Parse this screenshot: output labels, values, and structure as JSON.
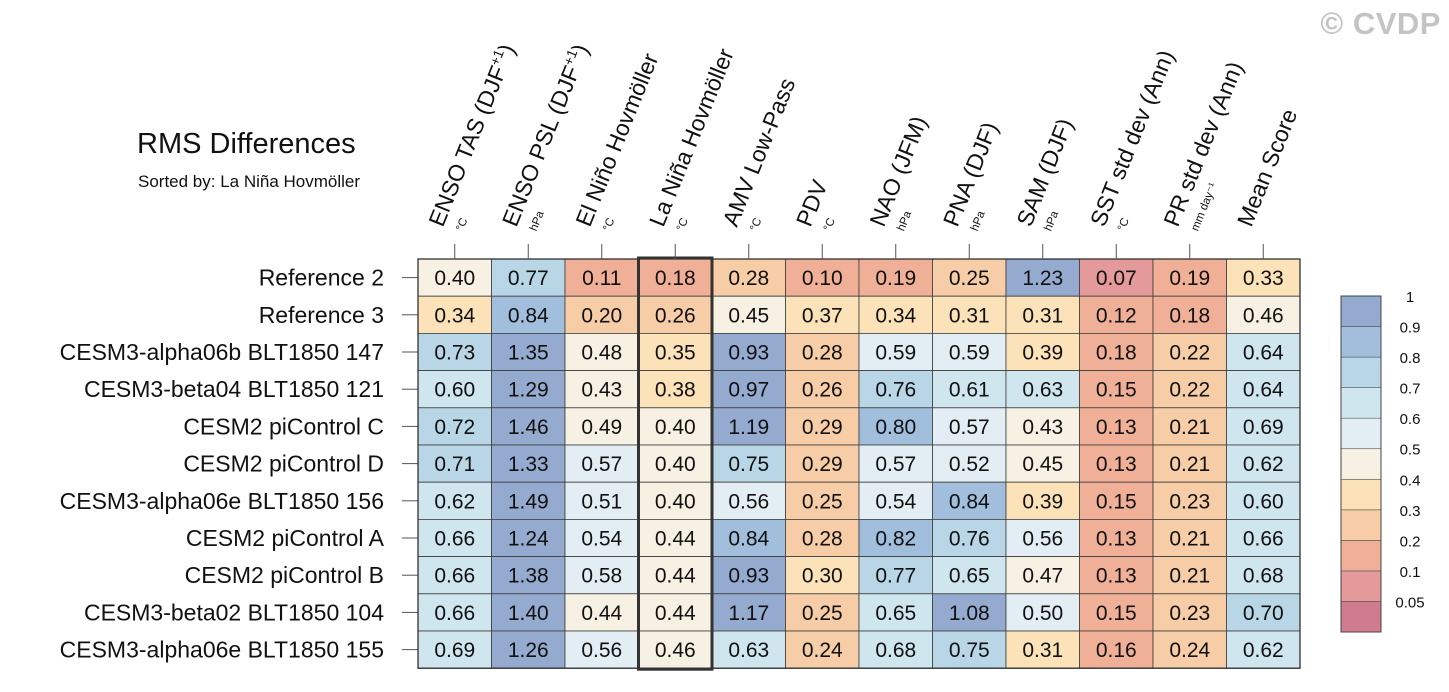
{
  "title": "RMS Differences",
  "subtitle": "Sorted by: La Niña Hovmöller",
  "watermark": "© CVDP",
  "chart_data": {
    "type": "heatmap",
    "title": "RMS Differences",
    "sorted_by": "La Niña Hovmöller",
    "columns": [
      {
        "label": "ENSO TAS (DJF",
        "sup": "+1",
        "close": ")",
        "unit": "°C"
      },
      {
        "label": "ENSO PSL (DJF",
        "sup": "+1",
        "close": ")",
        "unit": "hPa"
      },
      {
        "label": "El Niño Hovmöller",
        "sup": "",
        "close": "",
        "unit": "°C"
      },
      {
        "label": "La Niña Hovmöller",
        "sup": "",
        "close": "",
        "unit": "°C"
      },
      {
        "label": "AMV Low-Pass",
        "sup": "",
        "close": "",
        "unit": "°C"
      },
      {
        "label": "PDV",
        "sup": "",
        "close": "",
        "unit": "°C"
      },
      {
        "label": "NAO (JFM)",
        "sup": "",
        "close": "",
        "unit": "hPa"
      },
      {
        "label": "PNA (DJF)",
        "sup": "",
        "close": "",
        "unit": "hPa"
      },
      {
        "label": "SAM (DJF)",
        "sup": "",
        "close": "",
        "unit": "hPa"
      },
      {
        "label": "SST std dev (Ann)",
        "sup": "",
        "close": "",
        "unit": "°C"
      },
      {
        "label": "PR std dev (Ann)",
        "sup": "",
        "close": "",
        "unit": "mm day⁻¹"
      },
      {
        "label": "Mean Score",
        "sup": "",
        "close": "",
        "unit": ""
      }
    ],
    "highlighted_column": 3,
    "rows": [
      {
        "name": "Reference 2",
        "values": [
          0.4,
          0.77,
          0.11,
          0.18,
          0.28,
          0.1,
          0.19,
          0.25,
          1.23,
          0.07,
          0.19,
          0.33
        ]
      },
      {
        "name": "Reference 3",
        "values": [
          0.34,
          0.84,
          0.2,
          0.26,
          0.45,
          0.37,
          0.34,
          0.31,
          0.31,
          0.12,
          0.18,
          0.46
        ]
      },
      {
        "name": "CESM3-alpha06b BLT1850 147",
        "values": [
          0.73,
          1.35,
          0.48,
          0.35,
          0.93,
          0.28,
          0.59,
          0.59,
          0.39,
          0.18,
          0.22,
          0.64
        ]
      },
      {
        "name": "CESM3-beta04 BLT1850 121",
        "values": [
          0.6,
          1.29,
          0.43,
          0.38,
          0.97,
          0.26,
          0.76,
          0.61,
          0.63,
          0.15,
          0.22,
          0.64
        ]
      },
      {
        "name": "CESM2 piControl C",
        "values": [
          0.72,
          1.46,
          0.49,
          0.4,
          1.19,
          0.29,
          0.8,
          0.57,
          0.43,
          0.13,
          0.21,
          0.69
        ]
      },
      {
        "name": "CESM2 piControl D",
        "values": [
          0.71,
          1.33,
          0.57,
          0.4,
          0.75,
          0.29,
          0.57,
          0.52,
          0.45,
          0.13,
          0.21,
          0.62
        ]
      },
      {
        "name": "CESM3-alpha06e BLT1850 156",
        "values": [
          0.62,
          1.49,
          0.51,
          0.4,
          0.56,
          0.25,
          0.54,
          0.84,
          0.39,
          0.15,
          0.23,
          0.6
        ]
      },
      {
        "name": "CESM2 piControl A",
        "values": [
          0.66,
          1.24,
          0.54,
          0.44,
          0.84,
          0.28,
          0.82,
          0.76,
          0.56,
          0.13,
          0.21,
          0.66
        ]
      },
      {
        "name": "CESM2 piControl B",
        "values": [
          0.66,
          1.38,
          0.58,
          0.44,
          0.93,
          0.3,
          0.77,
          0.65,
          0.47,
          0.13,
          0.21,
          0.68
        ]
      },
      {
        "name": "CESM3-beta02 BLT1850 104",
        "values": [
          0.66,
          1.4,
          0.44,
          0.44,
          1.17,
          0.25,
          0.65,
          1.08,
          0.5,
          0.15,
          0.23,
          0.7
        ]
      },
      {
        "name": "CESM3-alpha06e BLT1850 155",
        "values": [
          0.69,
          1.26,
          0.56,
          0.46,
          0.63,
          0.24,
          0.68,
          0.75,
          0.31,
          0.16,
          0.24,
          0.62
        ]
      }
    ],
    "colorbar": {
      "boundaries": [
        "0.05",
        "0.1",
        "0.2",
        "0.3",
        "0.4",
        "0.5",
        "0.6",
        "0.7",
        "0.8",
        "0.9",
        "1"
      ],
      "colors": [
        "#d07c8e",
        "#e49a9a",
        "#f0b098",
        "#f6cda6",
        "#fbe2b8",
        "#f6f1e2",
        "#e2eef3",
        "#cfe6ef",
        "#b9d6e6",
        "#a2bedd",
        "#95aacf"
      ]
    }
  }
}
